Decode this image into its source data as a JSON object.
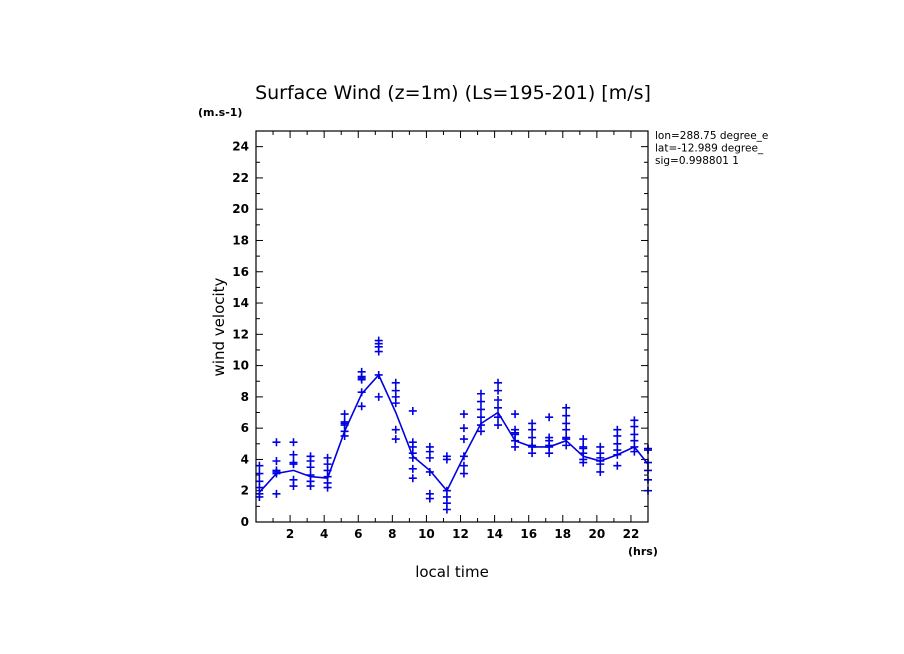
{
  "chart_data": {
    "type": "line",
    "title": "Surface Wind (z=1m) (Ls=195-201) [m/s]",
    "yunits": "(m.s-1)",
    "xunits": "(hrs)",
    "xlabel": "local time",
    "ylabel": "wind velocity",
    "xlim": [
      0,
      23
    ],
    "ylim": [
      0,
      25
    ],
    "xticks": [
      2,
      4,
      6,
      8,
      10,
      12,
      14,
      16,
      18,
      20,
      22
    ],
    "yticks": [
      0,
      2,
      4,
      6,
      8,
      10,
      12,
      14,
      16,
      18,
      20,
      22,
      24
    ],
    "info": [
      "lon=288.75 degree_e",
      "lat=-12.989 degree_",
      "sig=0.998801 1"
    ],
    "color": "#0000e0",
    "series": [
      {
        "style": "line",
        "x": [
          0.2,
          1.2,
          2.2,
          3.2,
          4.2,
          5.2,
          6.2,
          7.2,
          8.2,
          9.2,
          10.2,
          11.2,
          12.2,
          13.2,
          14.2,
          15.2,
          16.2,
          17.2,
          18.2,
          19.2,
          20.2,
          21.2,
          22.2,
          23.0
        ],
        "values": [
          1.9,
          3.1,
          3.3,
          2.9,
          2.8,
          5.8,
          8.2,
          9.4,
          7.0,
          4.2,
          3.3,
          2.0,
          4.2,
          6.3,
          7.0,
          5.2,
          4.8,
          4.8,
          5.2,
          4.2,
          3.9,
          4.3,
          4.8,
          3.7
        ]
      },
      {
        "style": "markers",
        "marker": "+",
        "groups": [
          {
            "x": 0.2,
            "y": [
              1.6,
              1.8,
              2.2,
              2.6,
              3.1,
              3.6
            ]
          },
          {
            "x": 1.2,
            "y": [
              1.8,
              3.1,
              3.2,
              3.3,
              3.9,
              5.1
            ]
          },
          {
            "x": 2.2,
            "y": [
              2.3,
              2.7,
              3.7,
              3.8,
              4.3,
              5.1
            ]
          },
          {
            "x": 3.2,
            "y": [
              2.3,
              2.6,
              3.0,
              3.5,
              3.9,
              4.2
            ]
          },
          {
            "x": 4.2,
            "y": [
              2.2,
              2.5,
              2.9,
              3.3,
              3.7,
              4.1
            ]
          },
          {
            "x": 5.2,
            "y": [
              5.5,
              5.8,
              6.2,
              6.3,
              6.4,
              6.9
            ]
          },
          {
            "x": 6.2,
            "y": [
              7.4,
              8.3,
              9.1,
              9.2,
              9.3,
              9.6
            ]
          },
          {
            "x": 7.2,
            "y": [
              8.0,
              9.4,
              10.9,
              11.2,
              11.4,
              11.6
            ]
          },
          {
            "x": 8.2,
            "y": [
              5.3,
              5.9,
              7.6,
              8.0,
              8.4,
              8.9
            ]
          },
          {
            "x": 9.2,
            "y": [
              2.8,
              3.4,
              4.1,
              4.4,
              4.8,
              5.1,
              7.1
            ]
          },
          {
            "x": 10.2,
            "y": [
              1.5,
              1.8,
              3.2,
              4.1,
              4.5,
              4.8
            ]
          },
          {
            "x": 11.2,
            "y": [
              0.8,
              1.2,
              1.6,
              2.0,
              4.0,
              4.2
            ]
          },
          {
            "x": 12.2,
            "y": [
              3.1,
              3.6,
              4.2,
              5.3,
              6.0,
              6.9
            ]
          },
          {
            "x": 13.2,
            "y": [
              5.8,
              6.2,
              6.7,
              7.2,
              7.7,
              8.2
            ]
          },
          {
            "x": 14.2,
            "y": [
              6.2,
              6.7,
              7.3,
              7.8,
              8.4,
              8.9
            ]
          },
          {
            "x": 15.2,
            "y": [
              4.8,
              5.2,
              5.6,
              5.7,
              5.9,
              6.9
            ]
          },
          {
            "x": 16.2,
            "y": [
              4.4,
              4.8,
              4.9,
              5.4,
              5.9,
              6.3
            ]
          },
          {
            "x": 17.2,
            "y": [
              4.4,
              4.8,
              4.9,
              5.2,
              5.4,
              6.7
            ]
          },
          {
            "x": 18.2,
            "y": [
              4.9,
              5.3,
              5.4,
              5.9,
              6.3,
              6.8,
              7.3
            ]
          },
          {
            "x": 19.2,
            "y": [
              3.8,
              4.0,
              4.4,
              4.7,
              4.8,
              5.3
            ]
          },
          {
            "x": 20.2,
            "y": [
              3.2,
              3.7,
              3.9,
              4.1,
              4.4,
              4.8
            ]
          },
          {
            "x": 21.2,
            "y": [
              3.6,
              4.3,
              4.6,
              5.0,
              5.5,
              5.9
            ]
          },
          {
            "x": 22.2,
            "y": [
              4.5,
              4.8,
              5.2,
              5.6,
              6.1,
              6.5
            ]
          },
          {
            "x": 23.0,
            "y": [
              2.0,
              2.7,
              3.3,
              3.8,
              4.6,
              4.7
            ]
          }
        ]
      }
    ]
  }
}
